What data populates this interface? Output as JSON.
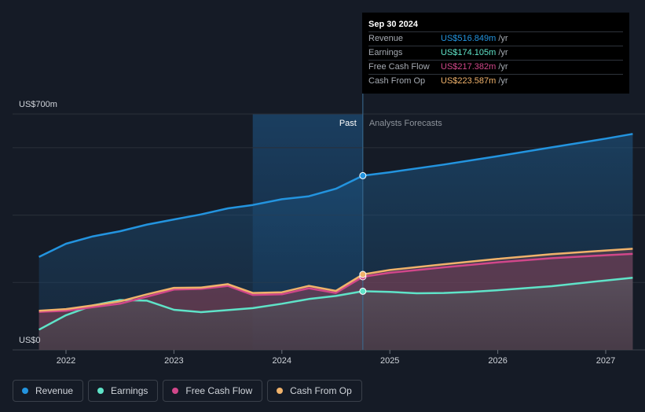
{
  "chart_data": {
    "type": "area",
    "y_unit_labels": {
      "top": "US$700m",
      "bottom": "US$0"
    },
    "ylim": [
      0,
      700
    ],
    "xlim": [
      2021.7,
      2027.25
    ],
    "x_ticks": [
      "2022",
      "2023",
      "2024",
      "2025",
      "2026",
      "2027"
    ],
    "past_label": "Past",
    "forecast_label": "Analysts Forecasts",
    "split_x": 2024.75,
    "highlight_start": 2023.73,
    "series": [
      {
        "name": "Revenue",
        "color": "#2394df",
        "values": [
          [
            2021.75,
            276
          ],
          [
            2022.0,
            315
          ],
          [
            2022.25,
            337
          ],
          [
            2022.5,
            352
          ],
          [
            2022.75,
            372
          ],
          [
            2023.0,
            387
          ],
          [
            2023.25,
            402
          ],
          [
            2023.5,
            420
          ],
          [
            2023.73,
            430
          ],
          [
            2024.0,
            447
          ],
          [
            2024.25,
            456
          ],
          [
            2024.5,
            478
          ],
          [
            2024.75,
            517
          ],
          [
            2025.0,
            527
          ],
          [
            2025.5,
            550
          ],
          [
            2026.0,
            575
          ],
          [
            2026.5,
            601
          ],
          [
            2027.0,
            627
          ],
          [
            2027.25,
            641
          ]
        ]
      },
      {
        "name": "Earnings",
        "color": "#5fe3c8",
        "values": [
          [
            2021.75,
            60
          ],
          [
            2022.0,
            103
          ],
          [
            2022.25,
            132
          ],
          [
            2022.5,
            148
          ],
          [
            2022.75,
            146
          ],
          [
            2023.0,
            119
          ],
          [
            2023.25,
            112
          ],
          [
            2023.5,
            118
          ],
          [
            2023.73,
            124
          ],
          [
            2024.0,
            137
          ],
          [
            2024.25,
            151
          ],
          [
            2024.5,
            160
          ],
          [
            2024.75,
            174
          ],
          [
            2025.0,
            172
          ],
          [
            2025.25,
            168
          ],
          [
            2025.5,
            169
          ],
          [
            2025.75,
            172
          ],
          [
            2026.0,
            177
          ],
          [
            2026.5,
            189
          ],
          [
            2027.0,
            206
          ],
          [
            2027.25,
            214
          ]
        ]
      },
      {
        "name": "Free Cash Flow",
        "color": "#d1478a",
        "values": [
          [
            2021.75,
            113
          ],
          [
            2022.0,
            116
          ],
          [
            2022.25,
            127
          ],
          [
            2022.5,
            137
          ],
          [
            2022.75,
            158
          ],
          [
            2023.0,
            179
          ],
          [
            2023.25,
            181
          ],
          [
            2023.5,
            190
          ],
          [
            2023.73,
            163
          ],
          [
            2024.0,
            165
          ],
          [
            2024.25,
            183
          ],
          [
            2024.5,
            169
          ],
          [
            2024.75,
            217
          ],
          [
            2025.0,
            229
          ],
          [
            2025.5,
            245
          ],
          [
            2026.0,
            260
          ],
          [
            2026.5,
            272
          ],
          [
            2027.0,
            281
          ],
          [
            2027.25,
            285
          ]
        ]
      },
      {
        "name": "Cash From Op",
        "color": "#f0b26b",
        "values": [
          [
            2021.75,
            116
          ],
          [
            2022.0,
            121
          ],
          [
            2022.25,
            132
          ],
          [
            2022.5,
            144
          ],
          [
            2022.75,
            165
          ],
          [
            2023.0,
            184
          ],
          [
            2023.25,
            185
          ],
          [
            2023.5,
            195
          ],
          [
            2023.73,
            169
          ],
          [
            2024.0,
            171
          ],
          [
            2024.25,
            190
          ],
          [
            2024.5,
            175
          ],
          [
            2024.75,
            224
          ],
          [
            2025.0,
            237
          ],
          [
            2025.5,
            254
          ],
          [
            2026.0,
            270
          ],
          [
            2026.5,
            284
          ],
          [
            2027.0,
            295
          ],
          [
            2027.25,
            300
          ]
        ]
      }
    ]
  },
  "tooltip": {
    "date": "Sep 30 2024",
    "rows": [
      {
        "label": "Revenue",
        "value": "US$516.849m",
        "unit": "/yr",
        "color": "#2394df"
      },
      {
        "label": "Earnings",
        "value": "US$174.105m",
        "unit": "/yr",
        "color": "#5fe3c8"
      },
      {
        "label": "Free Cash Flow",
        "value": "US$217.382m",
        "unit": "/yr",
        "color": "#d1478a"
      },
      {
        "label": "Cash From Op",
        "value": "US$223.587m",
        "unit": "/yr",
        "color": "#f0b26b"
      }
    ]
  },
  "legend": [
    {
      "label": "Revenue",
      "color": "#2394df"
    },
    {
      "label": "Earnings",
      "color": "#5fe3c8"
    },
    {
      "label": "Free Cash Flow",
      "color": "#d1478a"
    },
    {
      "label": "Cash From Op",
      "color": "#f0b26b"
    }
  ]
}
